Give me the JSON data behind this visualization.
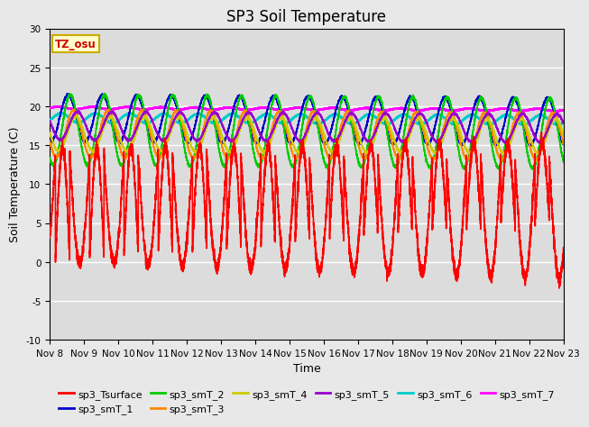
{
  "title": "SP3 Soil Temperature",
  "xlabel": "Time",
  "ylabel": "Soil Temperature (C)",
  "ylim": [
    -10,
    30
  ],
  "xlim": [
    0,
    360
  ],
  "bg_color": "#dcdcdc",
  "fig_color": "#e8e8e8",
  "annotation_text": "TZ_osu",
  "annotation_color": "#cc0000",
  "annotation_bg": "#ffffcc",
  "annotation_border": "#ccaa00",
  "series_order": [
    "sp3_Tsurface",
    "sp3_smT_1",
    "sp3_smT_2",
    "sp3_smT_3",
    "sp3_smT_4",
    "sp3_smT_5",
    "sp3_smT_6",
    "sp3_smT_7"
  ],
  "series": {
    "sp3_Tsurface": {
      "color": "#ff0000",
      "lw": 1.2,
      "zorder": 5
    },
    "sp3_smT_1": {
      "color": "#0000cc",
      "lw": 1.2,
      "zorder": 4
    },
    "sp3_smT_2": {
      "color": "#00cc00",
      "lw": 1.2,
      "zorder": 4
    },
    "sp3_smT_3": {
      "color": "#ff8800",
      "lw": 1.2,
      "zorder": 4
    },
    "sp3_smT_4": {
      "color": "#cccc00",
      "lw": 1.2,
      "zorder": 4
    },
    "sp3_smT_5": {
      "color": "#9900cc",
      "lw": 1.2,
      "zorder": 4
    },
    "sp3_smT_6": {
      "color": "#00cccc",
      "lw": 1.5,
      "zorder": 3
    },
    "sp3_smT_7": {
      "color": "#ff00ff",
      "lw": 1.8,
      "zorder": 3
    }
  },
  "xtick_labels": [
    "Nov 8",
    "Nov 9",
    "Nov 10",
    "Nov 11",
    "Nov 12",
    "Nov 13",
    "Nov 14",
    "Nov 15",
    "Nov 16",
    "Nov 17",
    "Nov 18",
    "Nov 19",
    "Nov 20",
    "Nov 21",
    "Nov 22",
    "Nov 23"
  ],
  "xtick_positions": [
    0,
    24,
    48,
    72,
    96,
    120,
    144,
    168,
    192,
    216,
    240,
    264,
    288,
    312,
    336,
    360
  ],
  "ytick_positions": [
    -10,
    -5,
    0,
    5,
    10,
    15,
    20,
    25,
    30
  ],
  "grid_color": "#ffffff",
  "title_fontsize": 12,
  "axis_label_fontsize": 9,
  "tick_fontsize": 7.5,
  "legend_fontsize": 8
}
